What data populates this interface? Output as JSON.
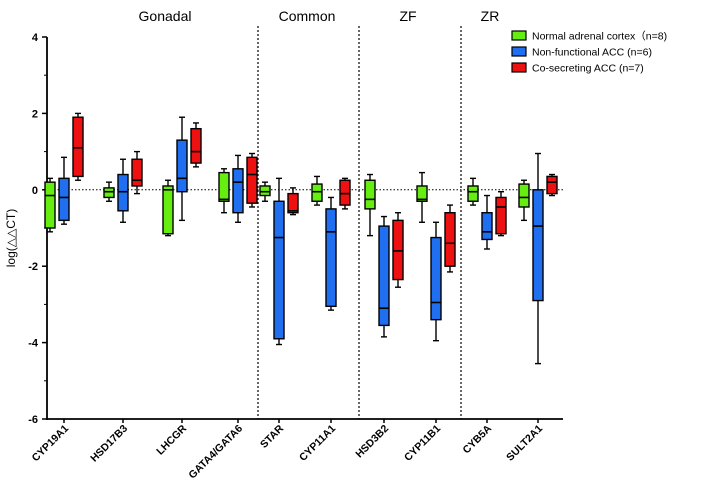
{
  "chart_data": {
    "type": "box",
    "ylabel": "log(△△CT)",
    "ylim": [
      -6,
      4
    ],
    "yticks": [
      "4",
      "2",
      "0",
      "-2",
      "-4",
      "-6"
    ],
    "ytick_values": [
      4,
      2,
      0,
      -2,
      -4,
      -6
    ],
    "reference_line": 0,
    "legend_position": "top-right",
    "groups": [
      {
        "label": "Gonadal",
        "categories": [
          "CYP19A1",
          "HSD17B3",
          "LHCGR",
          "GATA4/GATA6"
        ]
      },
      {
        "label": "Common",
        "categories": [
          "STAR",
          "CYP11A1"
        ]
      },
      {
        "label": "ZF",
        "categories": [
          "HSD3B2",
          "CYP11B1"
        ]
      },
      {
        "label": "ZR",
        "categories": [
          "CYB5A",
          "SULT2A1"
        ]
      }
    ],
    "categories": [
      "CYP19A1",
      "HSD17B3",
      "LHCGR",
      "GATA4/GATA6",
      "STAR",
      "CYP11A1",
      "HSD3B2",
      "CYP11B1",
      "CYB5A",
      "SULT2A1"
    ],
    "series": [
      {
        "name": "Normal adrenal cortex（n=8)",
        "color": "#66ee11",
        "boxes": [
          {
            "min": -1.1,
            "q1": -1.0,
            "median": -0.15,
            "q3": 0.2,
            "max": 0.3
          },
          {
            "min": -0.3,
            "q1": -0.2,
            "median": -0.05,
            "q3": 0.05,
            "max": 0.2
          },
          {
            "min": -1.2,
            "q1": -1.15,
            "median": 0.0,
            "q3": 0.1,
            "max": 0.25
          },
          {
            "min": -0.6,
            "q1": -0.3,
            "median": -0.25,
            "q3": 0.45,
            "max": 0.55
          },
          {
            "min": -0.3,
            "q1": -0.15,
            "median": -0.05,
            "q3": 0.1,
            "max": 0.2
          },
          {
            "min": -0.4,
            "q1": -0.3,
            "median": -0.05,
            "q3": 0.15,
            "max": 0.35
          },
          {
            "min": -1.2,
            "q1": -0.5,
            "median": -0.25,
            "q3": 0.25,
            "max": 0.4
          },
          {
            "min": -0.85,
            "q1": -0.3,
            "median": -0.25,
            "q3": 0.1,
            "max": 0.45
          },
          {
            "min": -0.4,
            "q1": -0.3,
            "median": -0.05,
            "q3": 0.1,
            "max": 0.3
          },
          {
            "min": -0.8,
            "q1": -0.45,
            "median": -0.2,
            "q3": 0.15,
            "max": 0.25
          }
        ]
      },
      {
        "name": "Non-functional ACC (n=6)",
        "color": "#1f6ff0",
        "boxes": [
          {
            "min": -0.9,
            "q1": -0.8,
            "median": -0.2,
            "q3": 0.3,
            "max": 0.85
          },
          {
            "min": -0.85,
            "q1": -0.55,
            "median": -0.05,
            "q3": 0.4,
            "max": 0.8
          },
          {
            "min": -0.8,
            "q1": -0.05,
            "median": 0.3,
            "q3": 1.3,
            "max": 1.9
          },
          {
            "min": -0.85,
            "q1": -0.6,
            "median": 0.2,
            "q3": 0.55,
            "max": 0.9
          },
          {
            "min": -4.05,
            "q1": -3.9,
            "median": -1.25,
            "q3": -0.3,
            "max": 0.3
          },
          {
            "min": -3.15,
            "q1": -3.05,
            "median": -1.1,
            "q3": -0.5,
            "max": -0.2
          },
          {
            "min": -3.85,
            "q1": -3.55,
            "median": -3.1,
            "q3": -0.95,
            "max": -0.7
          },
          {
            "min": -3.95,
            "q1": -3.4,
            "median": -2.95,
            "q3": -1.25,
            "max": -0.85
          },
          {
            "min": -1.55,
            "q1": -1.3,
            "median": -1.1,
            "q3": -0.6,
            "max": -0.15
          },
          {
            "min": -4.55,
            "q1": -2.9,
            "median": -0.95,
            "q3": 0.0,
            "max": 0.95
          }
        ]
      },
      {
        "name": "Co-secreting ACC (n=7)",
        "color": "#ee1111",
        "boxes": [
          {
            "min": 0.25,
            "q1": 0.35,
            "median": 1.1,
            "q3": 1.9,
            "max": 2.0
          },
          {
            "min": -0.1,
            "q1": 0.1,
            "median": 0.25,
            "q3": 0.8,
            "max": 1.0
          },
          {
            "min": 0.6,
            "q1": 0.7,
            "median": 1.0,
            "q3": 1.6,
            "max": 1.75
          },
          {
            "min": -0.45,
            "q1": -0.35,
            "median": 0.4,
            "q3": 0.85,
            "max": 0.95
          },
          {
            "min": -0.65,
            "q1": -0.6,
            "median": -0.55,
            "q3": -0.1,
            "max": 0.05
          },
          {
            "min": -0.5,
            "q1": -0.4,
            "median": -0.1,
            "q3": 0.25,
            "max": 0.3
          },
          {
            "min": -2.55,
            "q1": -2.35,
            "median": -1.6,
            "q3": -0.8,
            "max": -0.6
          },
          {
            "min": -2.15,
            "q1": -2.0,
            "median": -1.4,
            "q3": -0.6,
            "max": -0.4
          },
          {
            "min": -1.2,
            "q1": -1.15,
            "median": -0.45,
            "q3": -0.2,
            "max": -0.05
          },
          {
            "min": -0.15,
            "q1": -0.1,
            "median": 0.2,
            "q3": 0.35,
            "max": 0.4
          }
        ]
      }
    ]
  }
}
